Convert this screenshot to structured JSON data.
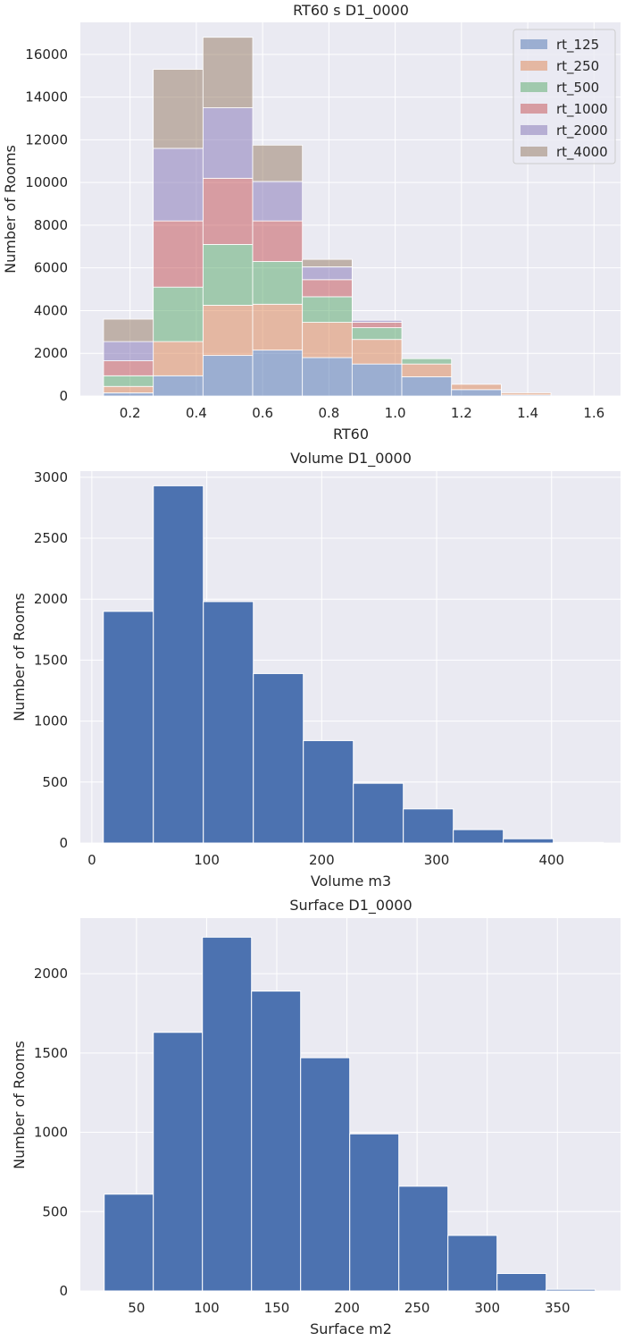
{
  "chart_data": [
    {
      "type": "bar",
      "stacked": true,
      "title": "RT60 s D1_0000",
      "xlabel": "RT60",
      "ylabel": "Number of Rooms",
      "xlim": [
        0.05,
        1.68
      ],
      "ylim": [
        0,
        17500
      ],
      "xticks": [
        0.2,
        0.4,
        0.6,
        0.8,
        1.0,
        1.2,
        1.4,
        1.6
      ],
      "xtick_labels": [
        "0.2",
        "0.4",
        "0.6",
        "0.8",
        "1.0",
        "1.2",
        "1.4",
        "1.6"
      ],
      "yticks": [
        0,
        2000,
        4000,
        6000,
        8000,
        10000,
        12000,
        14000,
        16000
      ],
      "ytick_labels": [
        "0",
        "2000",
        "4000",
        "6000",
        "8000",
        "10000",
        "12000",
        "14000",
        "16000"
      ],
      "bin_edges": [
        0.12,
        0.27,
        0.42,
        0.57,
        0.72,
        0.87,
        1.02,
        1.17,
        1.32,
        1.47,
        1.62
      ],
      "grid": true,
      "legend_position": "top-right",
      "alpha": 0.5,
      "series": [
        {
          "name": "rt_125",
          "color": "#4c72b0",
          "values": [
            150,
            950,
            1900,
            2150,
            1800,
            1500,
            900,
            300,
            50,
            0
          ]
        },
        {
          "name": "rt_250",
          "color": "#dd8452",
          "values": [
            300,
            1600,
            2350,
            2150,
            1650,
            1150,
            600,
            250,
            100,
            0
          ]
        },
        {
          "name": "rt_500",
          "color": "#55a868",
          "values": [
            500,
            2550,
            2850,
            2000,
            1200,
            550,
            250,
            0,
            0,
            0
          ]
        },
        {
          "name": "rt_1000",
          "color": "#c44e52",
          "values": [
            700,
            3100,
            3100,
            1900,
            800,
            250,
            0,
            0,
            0,
            0
          ]
        },
        {
          "name": "rt_2000",
          "color": "#8172b3",
          "values": [
            900,
            3400,
            3300,
            1850,
            600,
            100,
            0,
            0,
            0,
            0
          ]
        },
        {
          "name": "rt_4000",
          "color": "#937860",
          "values": [
            1050,
            3700,
            3300,
            1700,
            350,
            0,
            0,
            0,
            0,
            0
          ]
        }
      ]
    },
    {
      "type": "bar",
      "title": "Volume D1_0000",
      "xlabel": "Volume m3",
      "ylabel": "Number of Rooms",
      "xlim": [
        -10,
        460
      ],
      "ylim": [
        0,
        3050
      ],
      "xticks": [
        0,
        100,
        200,
        300,
        400
      ],
      "xtick_labels": [
        "0",
        "100",
        "200",
        "300",
        "400"
      ],
      "yticks": [
        0,
        500,
        1000,
        1500,
        2000,
        2500,
        3000
      ],
      "ytick_labels": [
        "0",
        "500",
        "1000",
        "1500",
        "2000",
        "2500",
        "3000"
      ],
      "bin_edges": [
        10,
        53.5,
        97,
        140.5,
        184,
        227.5,
        271,
        314.5,
        358,
        401.5,
        445
      ],
      "grid": true,
      "color": "#4c72b0",
      "values": [
        1900,
        2930,
        1980,
        1390,
        840,
        490,
        280,
        110,
        35,
        5
      ]
    },
    {
      "type": "bar",
      "title": "Surface D1_0000",
      "xlabel": "Surface m2",
      "ylabel": "Number of Rooms",
      "xlim": [
        10,
        395
      ],
      "ylim": [
        0,
        2350
      ],
      "xticks": [
        50,
        100,
        150,
        200,
        250,
        300,
        350
      ],
      "xtick_labels": [
        "50",
        "100",
        "150",
        "200",
        "250",
        "300",
        "350"
      ],
      "yticks": [
        0,
        500,
        1000,
        1500,
        2000
      ],
      "ytick_labels": [
        "0",
        "500",
        "1000",
        "1500",
        "2000"
      ],
      "bin_edges": [
        27,
        62,
        97,
        132,
        167,
        202,
        237,
        272,
        307,
        342,
        377
      ],
      "grid": true,
      "color": "#4c72b0",
      "values": [
        610,
        1630,
        2230,
        1890,
        1470,
        990,
        660,
        350,
        110,
        10
      ]
    }
  ]
}
